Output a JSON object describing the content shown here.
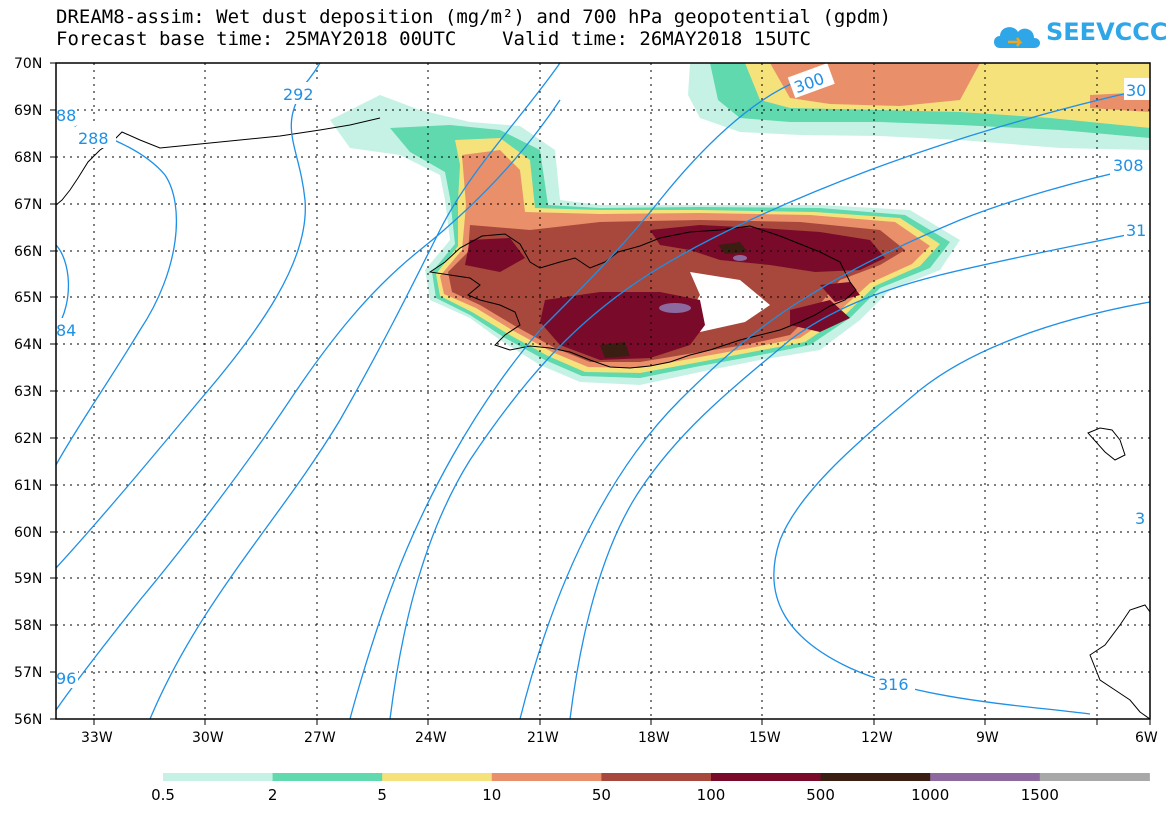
{
  "header": {
    "line1": "DREAM8-assim: Wet dust deposition (mg/m²) and 700 hPa geopotential (gpdm)",
    "line2": "Forecast base time: 25MAY2018 00UTC    Valid time: 26MAY2018 15UTC"
  },
  "logo": {
    "text": "SEEVCCC",
    "icon": "cloud-icon",
    "color": "#2fa6e8"
  },
  "map": {
    "lat_labels": [
      "70N",
      "69N",
      "68N",
      "67N",
      "66N",
      "65N",
      "64N",
      "63N",
      "62N",
      "61N",
      "60N",
      "59N",
      "58N",
      "57N",
      "56N"
    ],
    "lon_labels": [
      "33W",
      "30W",
      "27W",
      "24W",
      "21W",
      "18W",
      "15W",
      "12W",
      "9W",
      "6W"
    ],
    "contour_color": "#1e90e6",
    "contour_labels": [
      "288",
      "292",
      "300",
      "308",
      "316",
      "30",
      "31",
      "96",
      "88",
      "84",
      "3"
    ]
  },
  "legend": {
    "colors": [
      "#c6f2e6",
      "#5fd9ad",
      "#f5e27a",
      "#e98f6a",
      "#a8473b",
      "#7a0a2a",
      "#3a1e12",
      "#8c6aa0",
      "#a8a8a8"
    ],
    "labels": [
      "0.5",
      "2",
      "5",
      "10",
      "50",
      "100",
      "500",
      "1000",
      "1500"
    ]
  }
}
